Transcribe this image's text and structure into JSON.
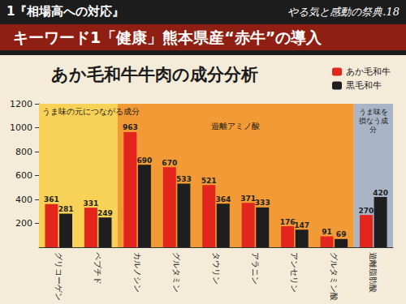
{
  "header": {
    "section": "1『相場高への対応』",
    "event": "やる気と感動の祭典.18",
    "keyword": "キーワード1「健康」熊本県産“赤牛”の導入"
  },
  "chart_data": {
    "type": "bar",
    "title": "あか毛和牛牛肉の成分分析",
    "categories": [
      "グリコーゲン",
      "ペプチド",
      "カルノシン",
      "グルタミン",
      "タウリン",
      "アラニン",
      "アンセリン",
      "グルタミン酸",
      "遊離脂肪酸"
    ],
    "series": [
      {
        "name": "あか毛和牛",
        "color": "#e3261b",
        "values": [
          361,
          331,
          963,
          670,
          521,
          371,
          176,
          91,
          270
        ]
      },
      {
        "name": "黒毛和牛",
        "color": "#1e1e1e",
        "values": [
          281,
          249,
          690,
          533,
          364,
          333,
          147,
          69,
          420
        ]
      }
    ],
    "annotations": [
      {
        "text": "うま味の元につながる成分",
        "from": "グリコーゲン",
        "to": "グルタミン酸",
        "color": "#f8d257"
      },
      {
        "text": "遊離アミノ酸",
        "from": "カルノシン",
        "to": "グルタミン酸",
        "color": "#f29a35"
      },
      {
        "text": "うま味を損なう成分",
        "from": "遊離脂肪酸",
        "to": "遊離脂肪酸",
        "color": "#a9b5c6"
      }
    ],
    "ylim": [
      0,
      1200
    ],
    "yticks": [
      200,
      400,
      600,
      800,
      1000,
      1200
    ],
    "grid": false,
    "legend": "upper right",
    "data_labels": true
  }
}
